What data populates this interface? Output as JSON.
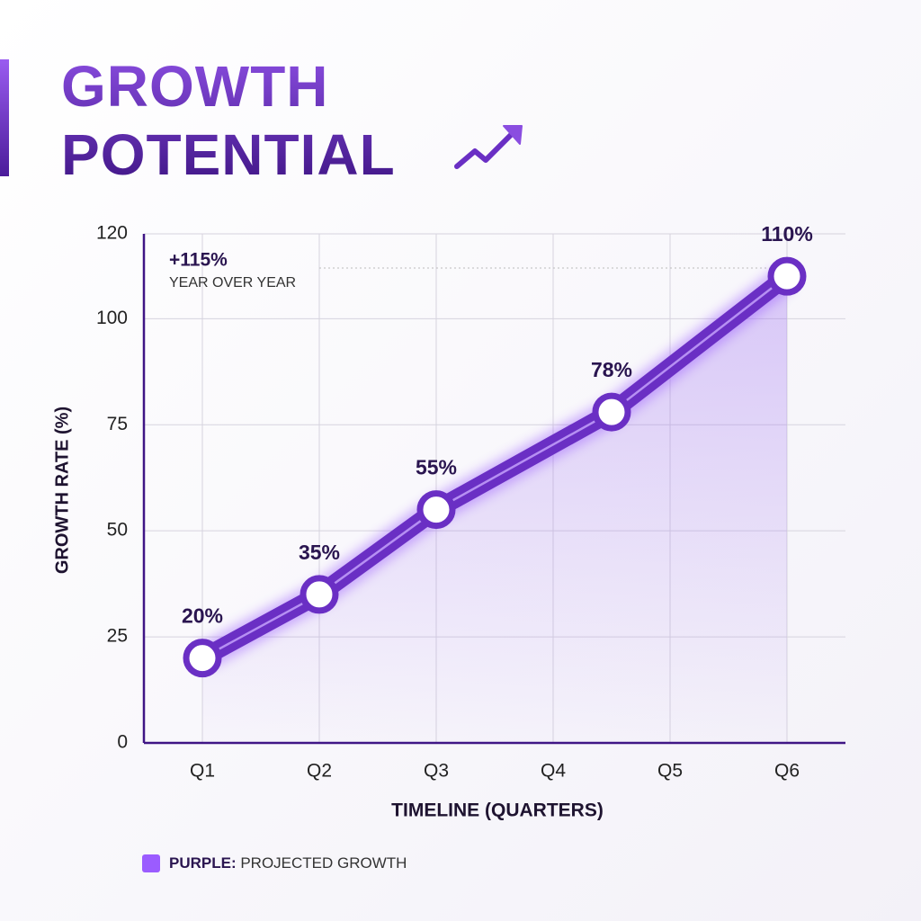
{
  "chart_data": {
    "type": "line",
    "title": "GROWTH POTENTIAL",
    "annotation": {
      "value": "+115%",
      "text": "YEAR OVER YEAR"
    },
    "x": [
      1,
      2,
      3,
      4.5,
      6
    ],
    "xlim": [
      0.5,
      6.5
    ],
    "xticks": [
      {
        "value": 1,
        "label": "Q1"
      },
      {
        "value": 2,
        "label": "Q2"
      },
      {
        "value": 3,
        "label": "Q3"
      },
      {
        "value": 4,
        "label": "Q4"
      },
      {
        "value": 5,
        "label": "Q5"
      },
      {
        "value": 6,
        "label": "Q6"
      }
    ],
    "ylim": [
      0,
      120
    ],
    "yticks": [
      0,
      25,
      50,
      75,
      100,
      120
    ],
    "x_label": "TIMELINE (QUARTERS)",
    "y_label": "GROWTH RATE (%)",
    "grid": true,
    "legend_prefix": "PURPLE:",
    "series": [
      {
        "name": "PROJECTED GROWTH",
        "color": "#6a2fc4",
        "values": [
          20,
          35,
          55,
          78,
          110
        ],
        "value_labels": [
          "20%",
          "35%",
          "55%",
          "78%",
          "110%"
        ]
      }
    ]
  }
}
